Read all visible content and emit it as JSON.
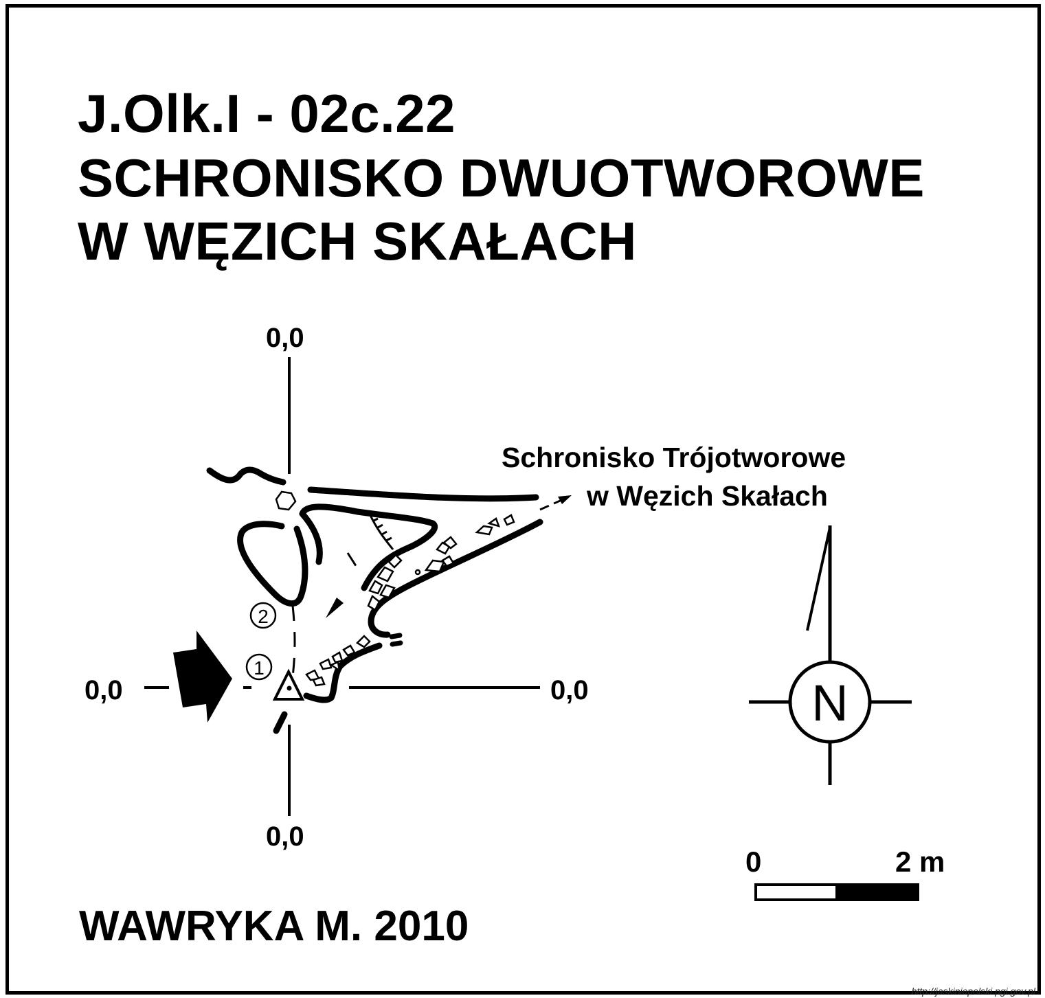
{
  "title": {
    "line1": "J.Olk.I - 02c.22",
    "line2": "SCHRONISKO DWUOTWOROWE",
    "line3": "W WĘZICH SKAŁACH"
  },
  "axes": {
    "top": "0,0",
    "bottom": "0,0",
    "left": "0,0",
    "right": "0,0"
  },
  "connection_label": {
    "line1": "Schronisko Trójotworowe",
    "line2": "w Węzich Skałach"
  },
  "markers": {
    "point1": "1",
    "point2": "2"
  },
  "compass": {
    "letter": "N"
  },
  "scale": {
    "start": "0",
    "end": "2 m"
  },
  "author": "WAWRYKA M. 2010",
  "credit": "http://jaskiniepolski.pgi.gov.pl"
}
